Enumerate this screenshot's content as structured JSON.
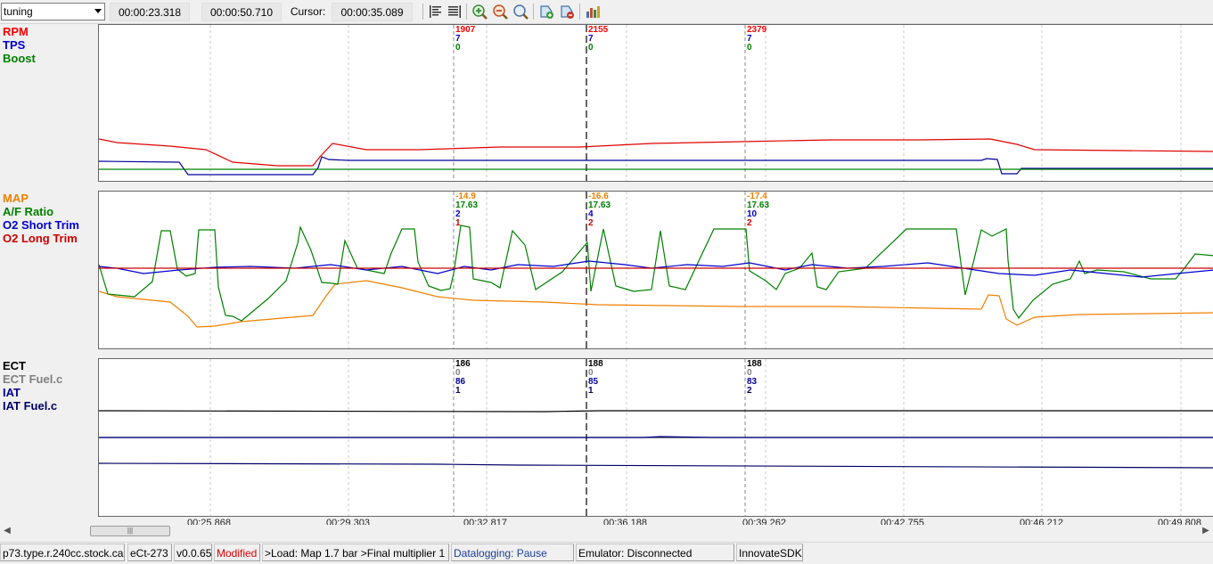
{
  "toolbar": {
    "mode_select": "tuning",
    "start_time": "00:00:23.318",
    "end_time": "00:00:50.710",
    "cursor_label": "Cursor:",
    "cursor_time": "00:00:35.089",
    "icons": [
      "align-left-icon",
      "align-justify-icon",
      "zoom-in-icon",
      "zoom-out-icon",
      "zoom-fit-icon",
      "add-marker-icon",
      "remove-marker-icon",
      "chart-config-icon"
    ]
  },
  "panels": [
    {
      "labels": [
        {
          "text": "RPM",
          "color": "#ff0000"
        },
        {
          "text": "TPS",
          "color": "#0000cc"
        },
        {
          "text": "Boost",
          "color": "#008000"
        }
      ],
      "readouts": [
        {
          "values": [
            "1907",
            "7",
            "0"
          ]
        },
        {
          "values": [
            "2155",
            "7",
            "0"
          ]
        },
        {
          "values": [
            "2379",
            "7",
            "0"
          ]
        }
      ]
    },
    {
      "labels": [
        {
          "text": "MAP",
          "color": "#f08000"
        },
        {
          "text": "A/F Ratio",
          "color": "#008000"
        },
        {
          "text": "O2 Short Trim",
          "color": "#0000cc"
        },
        {
          "text": "O2 Long Trim",
          "color": "#cc0000"
        }
      ],
      "readouts": [
        {
          "values": [
            "-14.9",
            "17.63",
            "2",
            "1"
          ]
        },
        {
          "values": [
            "-16.6",
            "17.63",
            "4",
            "2"
          ]
        },
        {
          "values": [
            "-17.4",
            "17.63",
            "10",
            "2"
          ]
        }
      ]
    },
    {
      "labels": [
        {
          "text": "ECT",
          "color": "#000000"
        },
        {
          "text": "ECT Fuel.c",
          "color": "#808080"
        },
        {
          "text": "IAT",
          "color": "#000099"
        },
        {
          "text": "IAT Fuel.c",
          "color": "#000066"
        }
      ],
      "readouts": [
        {
          "values": [
            "186",
            "0",
            "86",
            "1"
          ]
        },
        {
          "values": [
            "188",
            "0",
            "85",
            "1"
          ]
        },
        {
          "values": [
            "188",
            "0",
            "83",
            "2"
          ]
        }
      ]
    }
  ],
  "axis": {
    "ticks": [
      "00:25.868",
      "00:29.303",
      "00:32.817",
      "00:36.188",
      "00:39.262",
      "00:42.755",
      "00:46.212",
      "00:49.808"
    ]
  },
  "status_bar": {
    "calibration_file": "p73.type.r.240cc.stock.cal",
    "ect_id": "eCt-273",
    "version": "v0.0.65",
    "modified": "Modified",
    "breadcrumb": ">Load: Map 1.7 bar >Final multiplier 1",
    "datalogging": "Datalogging: Pause",
    "emulator": "Emulator: Disconnected",
    "sdk": "InnovateSDK"
  }
}
